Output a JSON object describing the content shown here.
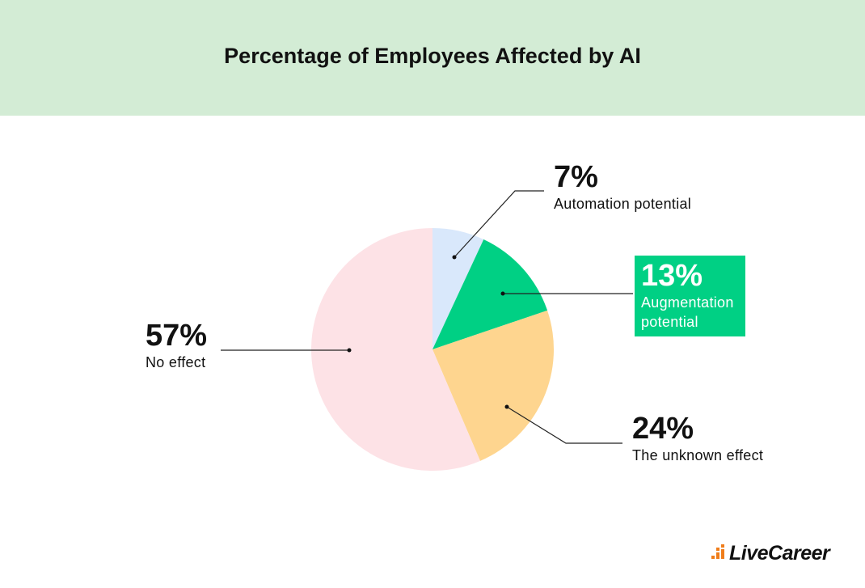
{
  "chart_data": {
    "type": "pie",
    "title": "Percentage of Employees Affected by AI",
    "categories": [
      "Automation potential",
      "Augmentation potential",
      "The unknown effect",
      "No effect"
    ],
    "values": [
      7,
      13,
      24,
      57
    ],
    "value_labels": [
      "7%",
      "13%",
      "24%",
      "57%"
    ],
    "colors": [
      "#d9e8fb",
      "#00d084",
      "#fed58f",
      "#fde2e6"
    ]
  },
  "brand": "LiveCareer"
}
